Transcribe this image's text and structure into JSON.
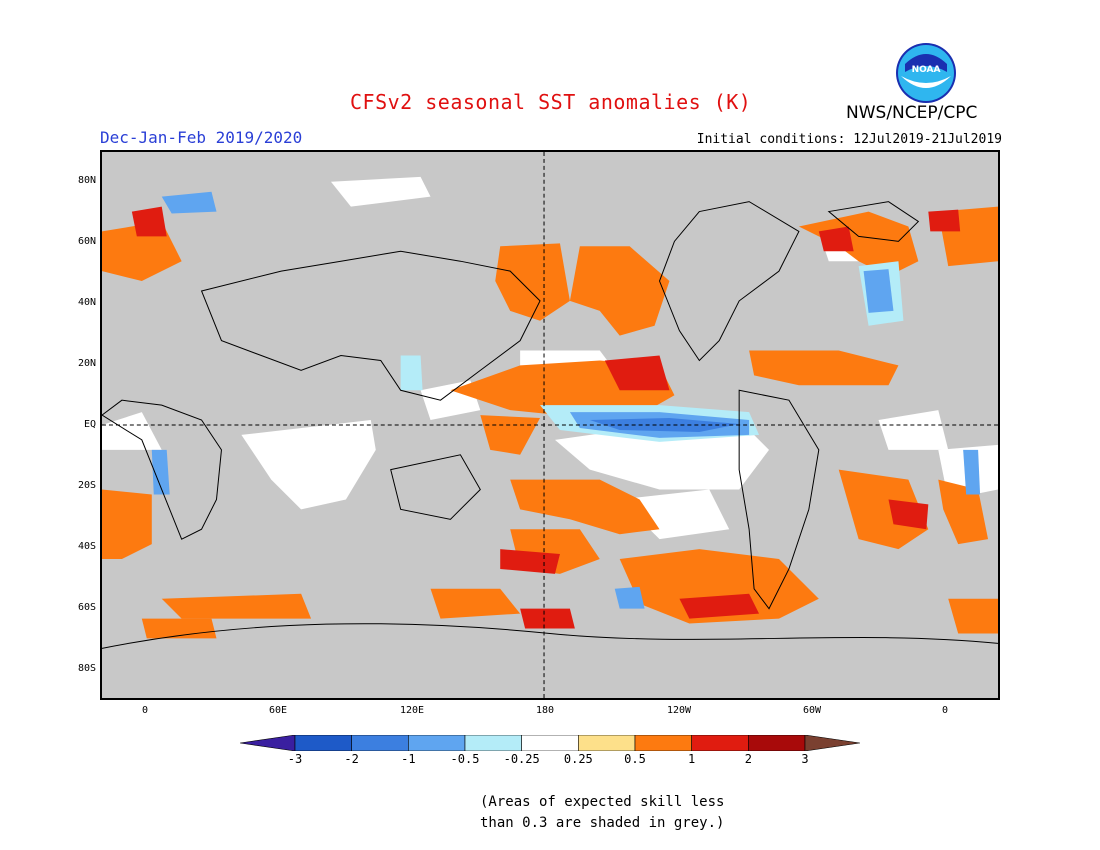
{
  "header": {
    "title": "CFSv2 seasonal SST anomalies (K)",
    "season": "Dec-Jan-Feb 2019/2020",
    "initial_conditions": "Initial conditions: 12Jul2019-21Jul2019",
    "agency": "NWS/NCEP/CPC",
    "logo_text": "NOAA"
  },
  "map": {
    "lat_labels": [
      "80N",
      "60N",
      "40N",
      "20N",
      "EQ",
      "20S",
      "40S",
      "60S",
      "80S"
    ],
    "lon_labels": [
      "0",
      "60E",
      "120E",
      "180",
      "120W",
      "60W",
      "0"
    ],
    "grey_meaning": "low skill"
  },
  "legend": {
    "ticks": [
      "-3",
      "-2",
      "-1",
      "-0.5",
      "-0.25",
      "0.25",
      "0.5",
      "1",
      "2",
      "3"
    ],
    "colors": [
      "#3a1fa0",
      "#1e5ac8",
      "#3c7fe0",
      "#5fa5f0",
      "#b4ecf8",
      "#ffffff",
      "#fde08a",
      "#fd7a10",
      "#e01c10",
      "#a80a0a",
      "#7a4030"
    ]
  },
  "footnote": {
    "line1": "(Areas of expected skill less",
    "line2": "than 0.3 are shaded in grey.)"
  }
}
